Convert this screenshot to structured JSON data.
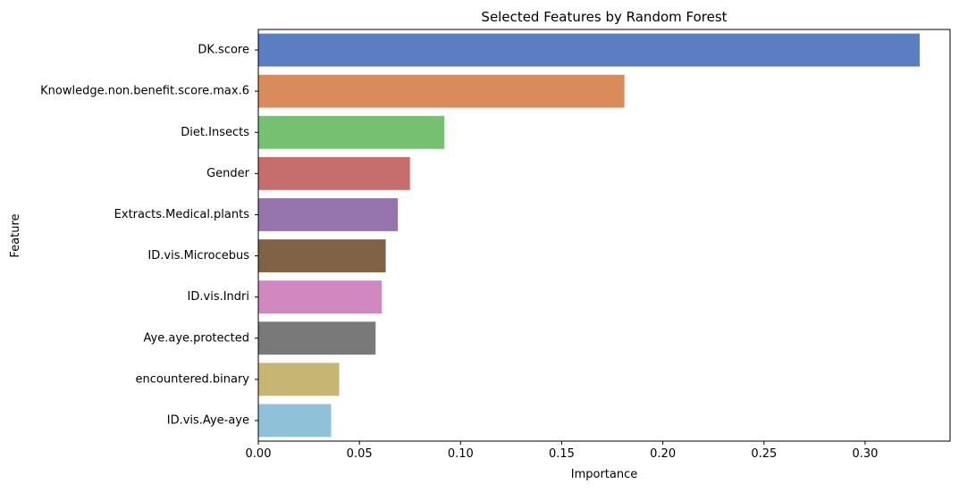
{
  "chart_data": {
    "type": "bar",
    "orientation": "horizontal",
    "title": "Selected Features by Random Forest",
    "xlabel": "Importance",
    "ylabel": "Feature",
    "xlim": [
      0,
      0.342
    ],
    "xticks": [
      0.0,
      0.05,
      0.1,
      0.15,
      0.2,
      0.25,
      0.3
    ],
    "xtick_labels": [
      "0.00",
      "0.05",
      "0.10",
      "0.15",
      "0.20",
      "0.25",
      "0.30"
    ],
    "grid": false,
    "categories": [
      "DK.score",
      "Knowledge.non.benefit.score.max.6",
      "Diet.Insects",
      "Gender",
      "Extracts.Medical.plants",
      "ID.vis.Microcebus",
      "ID.vis.Indri",
      "Aye.aye.protected",
      "encountered.binary",
      "ID.vis.Aye-aye"
    ],
    "values": [
      0.327,
      0.181,
      0.092,
      0.075,
      0.069,
      0.063,
      0.061,
      0.058,
      0.04,
      0.036
    ],
    "colors": [
      "#5a7ec1",
      "#da8b5c",
      "#75c071",
      "#c66e6d",
      "#9575ac",
      "#826246",
      "#d089c0",
      "#797979",
      "#c7b574",
      "#8fc1d8"
    ]
  }
}
